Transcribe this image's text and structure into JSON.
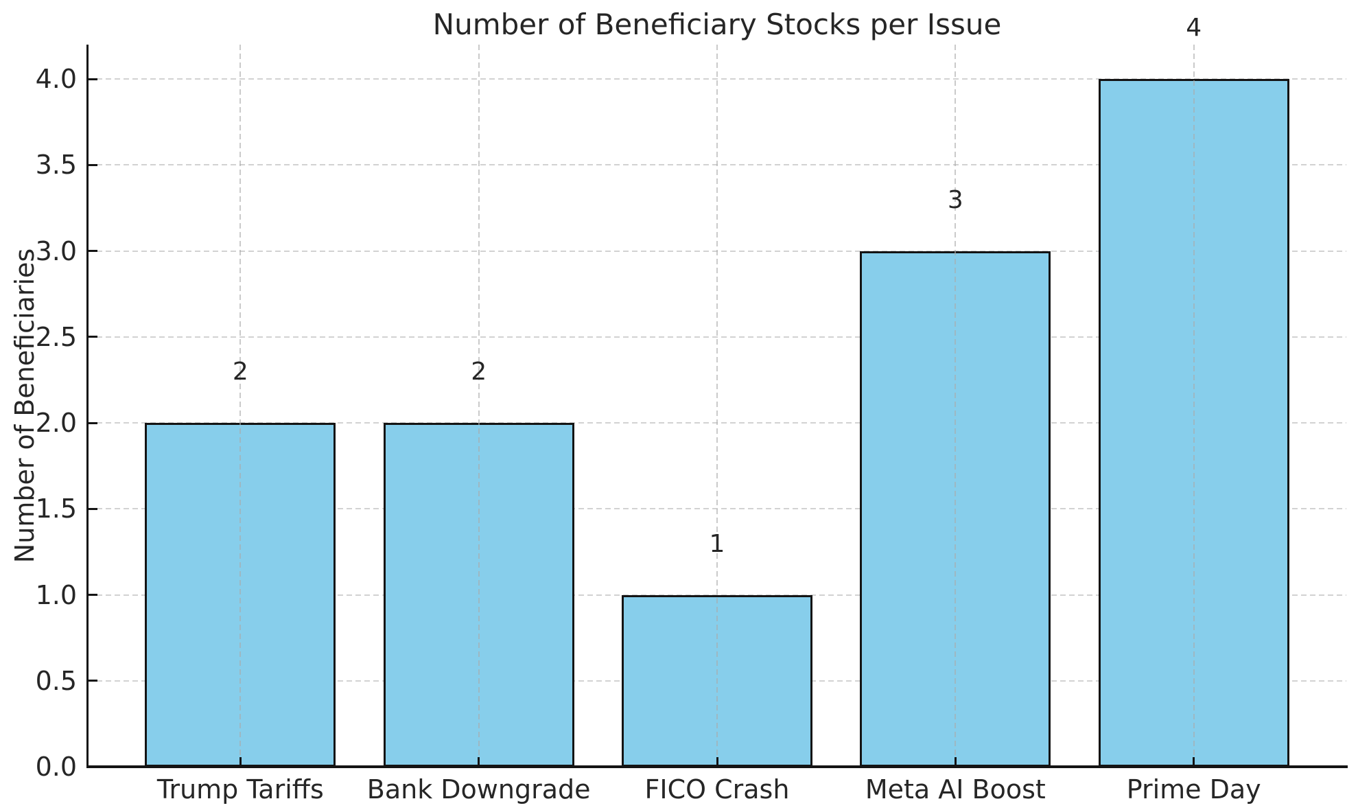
{
  "chart_data": {
    "type": "bar",
    "title": "Number of Beneficiary Stocks per Issue",
    "xlabel": "",
    "ylabel": "Number of Beneficiaries",
    "categories": [
      "Trump Tariffs",
      "Bank Downgrade",
      "FICO Crash",
      "Meta AI Boost",
      "Prime Day"
    ],
    "values": [
      2,
      2,
      1,
      3,
      4
    ],
    "bar_value_labels": [
      "2",
      "2",
      "1",
      "3",
      "4"
    ],
    "yticks": [
      0.0,
      0.5,
      1.0,
      1.5,
      2.0,
      2.5,
      3.0,
      3.5,
      4.0
    ],
    "ytick_labels": [
      "0.0",
      "0.5",
      "1.0",
      "1.5",
      "2.0",
      "2.5",
      "3.0",
      "3.5",
      "4.0"
    ],
    "ylim": [
      0,
      4.2
    ],
    "grid": "dashed horizontal and vertical gridlines",
    "legend_position": "none",
    "colors": {
      "bar_fill": "#87CEEB",
      "bar_edge": "#141414",
      "gridline": "#d2d2d2",
      "axis_spine": "#141414",
      "text": "#262626",
      "background": "#ffffff"
    }
  }
}
